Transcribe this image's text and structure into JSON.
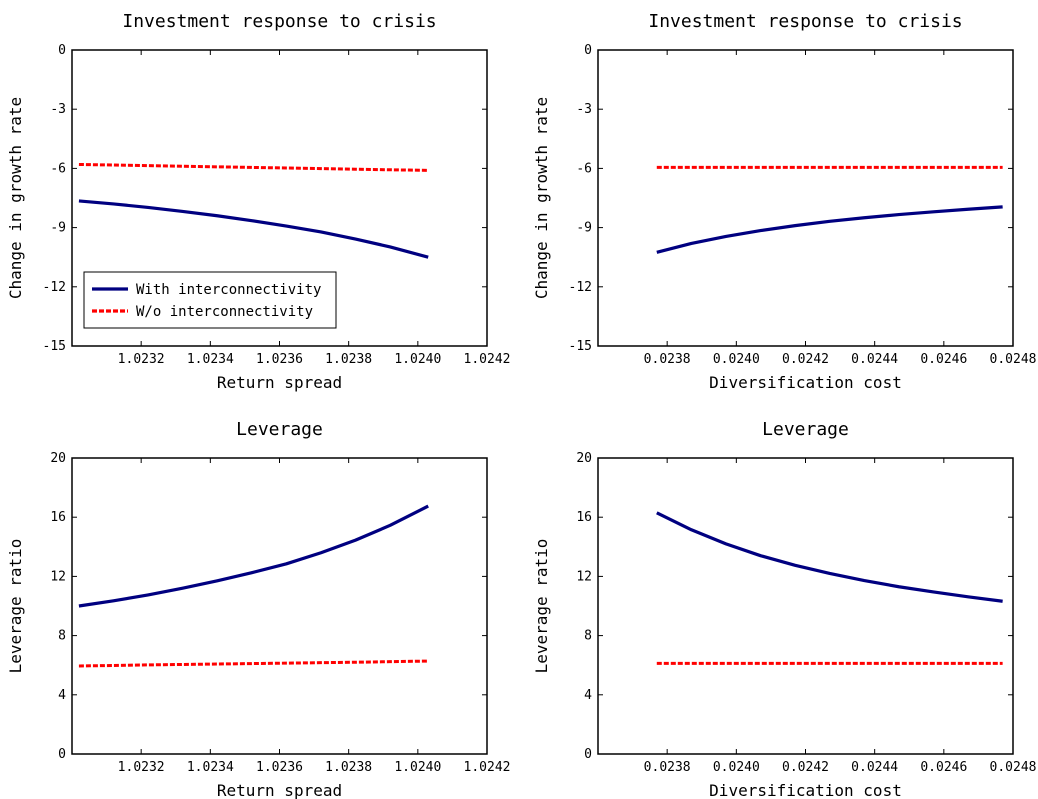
{
  "chart_data": [
    {
      "type": "line",
      "title": "Investment response to crisis",
      "xlabel": "Return spread",
      "ylabel": "Change in growth rate",
      "xlim": [
        1.023,
        1.0242
      ],
      "ylim": [
        -15,
        0
      ],
      "xticks": [
        "1.0232",
        "1.0234",
        "1.0236",
        "1.0238",
        "1.0240",
        "1.0242"
      ],
      "yticks": [
        "0",
        "-3",
        "-6",
        "-9",
        "-12",
        "-15"
      ],
      "legend": "bottom-left",
      "x": [
        1.02302,
        1.02312,
        1.02322,
        1.02332,
        1.02342,
        1.02352,
        1.02362,
        1.02372,
        1.02382,
        1.02392,
        1.02403
      ],
      "series": [
        {
          "name": "With interconnectivity",
          "color": "#000080",
          "style": "solid",
          "values": [
            -7.65,
            -7.8,
            -7.98,
            -8.18,
            -8.4,
            -8.65,
            -8.92,
            -9.22,
            -9.58,
            -9.98,
            -10.5
          ]
        },
        {
          "name": "W/o interconnectivity",
          "color": "#ff0000",
          "style": "dashed",
          "values": [
            -5.8,
            -5.83,
            -5.86,
            -5.89,
            -5.92,
            -5.95,
            -5.98,
            -6.01,
            -6.04,
            -6.07,
            -6.1
          ]
        }
      ]
    },
    {
      "type": "line",
      "title": "Investment response to crisis",
      "xlabel": "Diversification cost",
      "ylabel": "Change in growth rate",
      "xlim": [
        0.0236,
        0.0248
      ],
      "ylim": [
        -15,
        0
      ],
      "xticks": [
        "0.0238",
        "0.0240",
        "0.0242",
        "0.0244",
        "0.0246",
        "0.0248"
      ],
      "yticks": [
        "0",
        "-3",
        "-6",
        "-9",
        "-12",
        "-15"
      ],
      "x": [
        0.02377,
        0.02387,
        0.02397,
        0.02407,
        0.02417,
        0.02427,
        0.02437,
        0.02447,
        0.02457,
        0.02467,
        0.02477
      ],
      "series": [
        {
          "color": "#000080",
          "style": "solid",
          "values": [
            -10.25,
            -9.8,
            -9.45,
            -9.15,
            -8.9,
            -8.68,
            -8.5,
            -8.34,
            -8.2,
            -8.07,
            -7.95
          ]
        },
        {
          "color": "#ff0000",
          "style": "dashed",
          "values": [
            -5.95,
            -5.95,
            -5.95,
            -5.95,
            -5.95,
            -5.95,
            -5.95,
            -5.95,
            -5.95,
            -5.95,
            -5.95
          ]
        }
      ]
    },
    {
      "type": "line",
      "title": "Leverage",
      "xlabel": "Return spread",
      "ylabel": "Leverage ratio",
      "xlim": [
        1.023,
        1.0242
      ],
      "ylim": [
        0,
        20
      ],
      "xticks": [
        "1.0232",
        "1.0234",
        "1.0236",
        "1.0238",
        "1.0240",
        "1.0242"
      ],
      "yticks": [
        "0",
        "4",
        "8",
        "12",
        "16",
        "20"
      ],
      "x": [
        1.02302,
        1.02312,
        1.02322,
        1.02332,
        1.02342,
        1.02352,
        1.02362,
        1.02372,
        1.02382,
        1.02392,
        1.02403
      ],
      "series": [
        {
          "color": "#000080",
          "style": "solid",
          "values": [
            10.0,
            10.35,
            10.75,
            11.2,
            11.7,
            12.25,
            12.85,
            13.6,
            14.45,
            15.45,
            16.75
          ]
        },
        {
          "color": "#ff0000",
          "style": "dashed",
          "values": [
            5.95,
            5.98,
            6.02,
            6.05,
            6.08,
            6.11,
            6.14,
            6.17,
            6.2,
            6.24,
            6.28
          ]
        }
      ]
    },
    {
      "type": "line",
      "title": "Leverage",
      "xlabel": "Diversification cost",
      "ylabel": "Leverage ratio",
      "xlim": [
        0.0236,
        0.0248
      ],
      "ylim": [
        0,
        20
      ],
      "xticks": [
        "0.0238",
        "0.0240",
        "0.0242",
        "0.0244",
        "0.0246",
        "0.0248"
      ],
      "yticks": [
        "0",
        "4",
        "8",
        "12",
        "16",
        "20"
      ],
      "x": [
        0.02377,
        0.02387,
        0.02397,
        0.02407,
        0.02417,
        0.02427,
        0.02437,
        0.02447,
        0.02457,
        0.02467,
        0.02477
      ],
      "series": [
        {
          "color": "#000080",
          "style": "solid",
          "values": [
            16.3,
            15.15,
            14.2,
            13.4,
            12.75,
            12.2,
            11.72,
            11.3,
            10.95,
            10.62,
            10.32
          ]
        },
        {
          "color": "#ff0000",
          "style": "dashed",
          "values": [
            6.12,
            6.12,
            6.12,
            6.12,
            6.12,
            6.12,
            6.12,
            6.12,
            6.12,
            6.12,
            6.12
          ]
        }
      ]
    }
  ]
}
